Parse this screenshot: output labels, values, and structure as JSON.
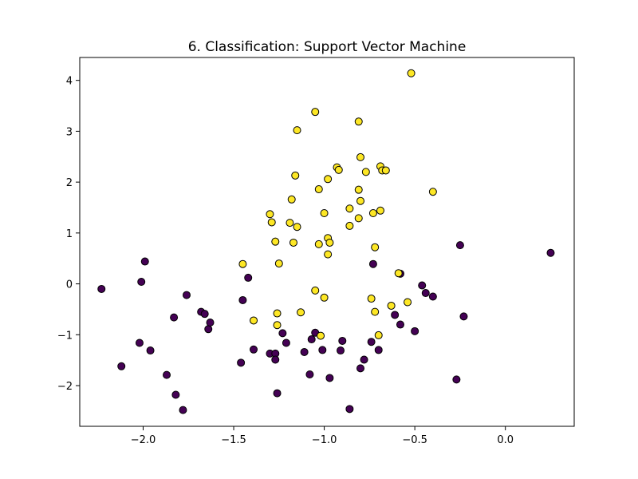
{
  "chart_data": {
    "type": "scatter",
    "title": "6. Classification: Support Vector Machine",
    "xlabel": "",
    "ylabel": "",
    "xlim": [
      -2.35,
      0.38
    ],
    "ylim": [
      -2.8,
      4.45
    ],
    "xticks": [
      -2.0,
      -1.5,
      -1.0,
      -0.5,
      0.0
    ],
    "xtick_labels": [
      "−2.0",
      "−1.5",
      "−1.0",
      "−0.5",
      "0.0"
    ],
    "yticks": [
      -2,
      -1,
      0,
      1,
      2,
      3,
      4
    ],
    "ytick_labels": [
      "−2",
      "−1",
      "0",
      "1",
      "2",
      "3",
      "4"
    ],
    "grid": false,
    "legend": "none",
    "class_colors": {
      "class_0": "#440154",
      "class_1": "#fde725"
    },
    "edge_color": "#000000",
    "series": [
      {
        "class": 0,
        "points": [
          [
            -2.23,
            -0.1
          ],
          [
            -1.99,
            0.44
          ],
          [
            -2.01,
            0.04
          ],
          [
            -2.12,
            -1.62
          ],
          [
            -2.02,
            -1.16
          ],
          [
            -1.96,
            -1.31
          ],
          [
            -1.83,
            -0.66
          ],
          [
            -1.82,
            -2.18
          ],
          [
            -1.87,
            -1.79
          ],
          [
            -1.78,
            -2.48
          ],
          [
            -1.76,
            -0.22
          ],
          [
            -1.68,
            -0.55
          ],
          [
            -1.66,
            -0.59
          ],
          [
            -1.64,
            -0.89
          ],
          [
            -1.63,
            -0.76
          ],
          [
            -1.46,
            -1.55
          ],
          [
            -1.45,
            -0.32
          ],
          [
            -1.42,
            0.12
          ],
          [
            -1.39,
            -1.29
          ],
          [
            -1.3,
            -1.37
          ],
          [
            -1.27,
            -1.37
          ],
          [
            -1.27,
            -1.49
          ],
          [
            -1.26,
            -2.15
          ],
          [
            -1.23,
            -0.97
          ],
          [
            -1.21,
            -1.16
          ],
          [
            -1.11,
            -1.34
          ],
          [
            -1.07,
            -1.09
          ],
          [
            -1.08,
            -1.78
          ],
          [
            -1.05,
            -0.96
          ],
          [
            -1.01,
            -1.3
          ],
          [
            -0.97,
            -1.85
          ],
          [
            -0.91,
            -1.31
          ],
          [
            -0.9,
            -1.12
          ],
          [
            -0.86,
            -2.46
          ],
          [
            -0.8,
            -1.66
          ],
          [
            -0.78,
            -1.49
          ],
          [
            -0.74,
            -1.14
          ],
          [
            -0.73,
            0.39
          ],
          [
            -0.7,
            -1.3
          ],
          [
            -0.61,
            -0.61
          ],
          [
            -0.58,
            0.2
          ],
          [
            -0.58,
            -0.8
          ],
          [
            -0.5,
            -0.93
          ],
          [
            -0.46,
            -0.03
          ],
          [
            -0.44,
            -0.18
          ],
          [
            -0.4,
            -0.25
          ],
          [
            -0.27,
            -1.88
          ],
          [
            -0.25,
            0.76
          ],
          [
            -0.23,
            -0.64
          ],
          [
            0.25,
            0.61
          ]
        ]
      },
      {
        "class": 1,
        "points": [
          [
            -0.52,
            4.14
          ],
          [
            -1.05,
            3.38
          ],
          [
            -1.15,
            3.02
          ],
          [
            -0.81,
            3.19
          ],
          [
            -0.8,
            2.49
          ],
          [
            -0.93,
            2.29
          ],
          [
            -0.92,
            2.24
          ],
          [
            -0.77,
            2.2
          ],
          [
            -0.69,
            2.31
          ],
          [
            -0.68,
            2.23
          ],
          [
            -0.66,
            2.23
          ],
          [
            -1.16,
            2.13
          ],
          [
            -0.98,
            2.06
          ],
          [
            -1.03,
            1.86
          ],
          [
            -0.81,
            1.85
          ],
          [
            -0.4,
            1.81
          ],
          [
            -1.18,
            1.66
          ],
          [
            -0.8,
            1.63
          ],
          [
            -0.86,
            1.48
          ],
          [
            -0.69,
            1.44
          ],
          [
            -1.0,
            1.39
          ],
          [
            -0.73,
            1.39
          ],
          [
            -1.3,
            1.37
          ],
          [
            -0.81,
            1.29
          ],
          [
            -1.29,
            1.21
          ],
          [
            -1.19,
            1.2
          ],
          [
            -1.15,
            1.12
          ],
          [
            -0.86,
            1.14
          ],
          [
            -0.98,
            0.9
          ],
          [
            -1.27,
            0.83
          ],
          [
            -1.17,
            0.81
          ],
          [
            -1.03,
            0.78
          ],
          [
            -0.97,
            0.81
          ],
          [
            -0.72,
            0.72
          ],
          [
            -0.98,
            0.58
          ],
          [
            -1.45,
            0.39
          ],
          [
            -1.25,
            0.4
          ],
          [
            -0.59,
            0.21
          ],
          [
            -1.05,
            -0.13
          ],
          [
            -1.0,
            -0.27
          ],
          [
            -0.74,
            -0.29
          ],
          [
            -0.54,
            -0.36
          ],
          [
            -0.63,
            -0.43
          ],
          [
            -1.13,
            -0.56
          ],
          [
            -0.72,
            -0.55
          ],
          [
            -1.26,
            -0.58
          ],
          [
            -1.39,
            -0.72
          ],
          [
            -1.26,
            -0.81
          ],
          [
            -1.02,
            -1.02
          ],
          [
            -0.7,
            -1.01
          ]
        ]
      }
    ]
  }
}
